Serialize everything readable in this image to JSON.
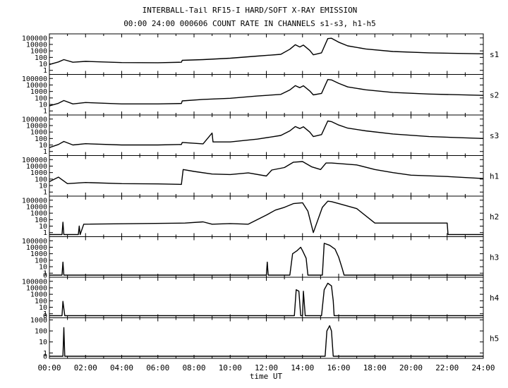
{
  "header": {
    "title": "INTERBALL-Tail RF15-I HARD/SOFT X-RAY EMISSION",
    "subtitle": "00:00 24:00 000606  COUNT RATE IN CHANNELS s1-s3, h1-h5"
  },
  "colors": {
    "ink": "#000000",
    "background": "#ffffff"
  },
  "chart_data": {
    "type": "line",
    "xlabel": "time UT",
    "x_tick_labels": [
      "00:00",
      "02:00",
      "04:00",
      "06:00",
      "08:00",
      "10:00",
      "12:00",
      "14:00",
      "16:00",
      "18:00",
      "20:00",
      "22:00",
      "24:00"
    ],
    "x_range_hours": [
      0,
      24
    ],
    "y_scale": "log",
    "grid": false,
    "panels": [
      {
        "name": "s1",
        "ylim": [
          0.5,
          200000
        ],
        "y_tick_labels": [
          "100000",
          "10000",
          "1000",
          "100",
          "10",
          "1"
        ],
        "series": [
          [
            0,
            8
          ],
          [
            0.5,
            20
          ],
          [
            0.8,
            45
          ],
          [
            1.3,
            18
          ],
          [
            2,
            24
          ],
          [
            4,
            16
          ],
          [
            6,
            15
          ],
          [
            7.3,
            18
          ],
          [
            7.35,
            35
          ],
          [
            8.5,
            45
          ],
          [
            10,
            75
          ],
          [
            11.5,
            160
          ],
          [
            12.8,
            300
          ],
          [
            13.3,
            1800
          ],
          [
            13.6,
            9000
          ],
          [
            13.85,
            4000
          ],
          [
            14.05,
            8000
          ],
          [
            14.4,
            1200
          ],
          [
            14.6,
            250
          ],
          [
            15.05,
            500
          ],
          [
            15.4,
            80000
          ],
          [
            15.6,
            90000
          ],
          [
            16,
            22000
          ],
          [
            16.5,
            6000
          ],
          [
            17.5,
            2000
          ],
          [
            19,
            800
          ],
          [
            21,
            500
          ],
          [
            24,
            350
          ]
        ]
      },
      {
        "name": "s2",
        "ylim": [
          0.5,
          200000
        ],
        "y_tick_labels": [
          "100000",
          "10000",
          "1000",
          "100",
          "10",
          "1"
        ],
        "series": [
          [
            0,
            6
          ],
          [
            0.5,
            15
          ],
          [
            0.8,
            40
          ],
          [
            1.3,
            12
          ],
          [
            2,
            20
          ],
          [
            4,
            12
          ],
          [
            6,
            12
          ],
          [
            7.3,
            14
          ],
          [
            7.35,
            35
          ],
          [
            8.5,
            60
          ],
          [
            10,
            90
          ],
          [
            11.5,
            200
          ],
          [
            12.8,
            350
          ],
          [
            13.3,
            1700
          ],
          [
            13.6,
            8000
          ],
          [
            13.85,
            3800
          ],
          [
            14.05,
            7500
          ],
          [
            14.4,
            1200
          ],
          [
            14.6,
            300
          ],
          [
            15.05,
            500
          ],
          [
            15.4,
            70000
          ],
          [
            15.6,
            60000
          ],
          [
            16,
            18000
          ],
          [
            16.5,
            5000
          ],
          [
            17.5,
            1800
          ],
          [
            19,
            700
          ],
          [
            21,
            400
          ],
          [
            24,
            250
          ]
        ]
      },
      {
        "name": "s3",
        "ylim": [
          0.5,
          200000
        ],
        "y_tick_labels": [
          "100000",
          "10000",
          "1000",
          "100",
          "10",
          "1"
        ],
        "series": [
          [
            0,
            4
          ],
          [
            0.5,
            12
          ],
          [
            0.8,
            35
          ],
          [
            1.3,
            10
          ],
          [
            2,
            16
          ],
          [
            4,
            10
          ],
          [
            6,
            10
          ],
          [
            7.3,
            12
          ],
          [
            7.35,
            25
          ],
          [
            8.5,
            15
          ],
          [
            9,
            700
          ],
          [
            9.05,
            30
          ],
          [
            10,
            30
          ],
          [
            11.5,
            80
          ],
          [
            12.8,
            300
          ],
          [
            13.3,
            1500
          ],
          [
            13.6,
            7000
          ],
          [
            13.85,
            3500
          ],
          [
            14.05,
            6500
          ],
          [
            14.4,
            1000
          ],
          [
            14.6,
            200
          ],
          [
            15.05,
            400
          ],
          [
            15.4,
            50000
          ],
          [
            15.6,
            40000
          ],
          [
            16,
            12000
          ],
          [
            16.5,
            4000
          ],
          [
            17.5,
            1500
          ],
          [
            19,
            500
          ],
          [
            21,
            200
          ],
          [
            24,
            100
          ]
        ]
      },
      {
        "name": "h1",
        "ylim": [
          0.5,
          200000
        ],
        "y_tick_labels": [
          "100000",
          "10000",
          "1000",
          "100",
          "10",
          "1"
        ],
        "series": [
          [
            0,
            40
          ],
          [
            0.5,
            200
          ],
          [
            1,
            20
          ],
          [
            2,
            30
          ],
          [
            4,
            20
          ],
          [
            6,
            18
          ],
          [
            7.3,
            15
          ],
          [
            7.4,
            3000
          ],
          [
            8,
            1500
          ],
          [
            9,
            600
          ],
          [
            10,
            500
          ],
          [
            11,
            900
          ],
          [
            12,
            300
          ],
          [
            12.3,
            2500
          ],
          [
            13,
            6000
          ],
          [
            13.5,
            40000
          ],
          [
            14,
            50000
          ],
          [
            14.5,
            8000
          ],
          [
            15,
            3000
          ],
          [
            15.3,
            30000
          ],
          [
            15.6,
            30000
          ],
          [
            16,
            25000
          ],
          [
            17,
            15000
          ],
          [
            18,
            3000
          ],
          [
            19,
            1000
          ],
          [
            20,
            400
          ],
          [
            22,
            250
          ],
          [
            24,
            120
          ]
        ]
      },
      {
        "name": "h2",
        "ylim": [
          0.5,
          200000
        ],
        "y_tick_labels": [
          "100000",
          "10000",
          "1000",
          "100",
          "10",
          "1"
        ],
        "series": [
          [
            0,
            0.5
          ],
          [
            0.7,
            0.5
          ],
          [
            0.75,
            40
          ],
          [
            0.8,
            0.5
          ],
          [
            1.6,
            0.5
          ],
          [
            1.65,
            10
          ],
          [
            1.7,
            0.5
          ],
          [
            1.9,
            20
          ],
          [
            7.5,
            30
          ],
          [
            8.5,
            45
          ],
          [
            9,
            20
          ],
          [
            10,
            25
          ],
          [
            11,
            20
          ],
          [
            12,
            500
          ],
          [
            12.5,
            3000
          ],
          [
            13,
            8000
          ],
          [
            13.5,
            30000
          ],
          [
            14,
            40000
          ],
          [
            14.3,
            2000
          ],
          [
            14.6,
            1
          ],
          [
            15.1,
            8000
          ],
          [
            15.4,
            70000
          ],
          [
            15.6,
            60000
          ],
          [
            16,
            30000
          ],
          [
            17,
            5000
          ],
          [
            18,
            30
          ],
          [
            22,
            30
          ],
          [
            22.05,
            0.5
          ],
          [
            24,
            0.5
          ]
        ]
      },
      {
        "name": "h3",
        "ylim": [
          0.5,
          200000
        ],
        "y_tick_labels": [
          "100000",
          "10000",
          "1000",
          "100",
          "10",
          "1",
          "0"
        ],
        "series": [
          [
            0,
            0.5
          ],
          [
            0.7,
            0.5
          ],
          [
            0.75,
            50
          ],
          [
            0.8,
            0.5
          ],
          [
            12,
            0.5
          ],
          [
            12.05,
            50
          ],
          [
            12.1,
            0.5
          ],
          [
            13.3,
            0.5
          ],
          [
            13.45,
            1000
          ],
          [
            13.7,
            3000
          ],
          [
            13.9,
            10000
          ],
          [
            14,
            3000
          ],
          [
            14.2,
            200
          ],
          [
            14.3,
            0.5
          ],
          [
            15.1,
            0.5
          ],
          [
            15.2,
            40000
          ],
          [
            15.5,
            20000
          ],
          [
            15.8,
            5000
          ],
          [
            16,
            300
          ],
          [
            16.2,
            5
          ],
          [
            16.3,
            0.5
          ],
          [
            24,
            0.5
          ]
        ]
      },
      {
        "name": "h4",
        "ylim": [
          0.5,
          200000
        ],
        "y_tick_labels": [
          "100000",
          "10000",
          "1000",
          "100",
          "10",
          "1",
          "0"
        ],
        "series": [
          [
            0,
            0.5
          ],
          [
            0.7,
            0.5
          ],
          [
            0.75,
            80
          ],
          [
            0.85,
            0.5
          ],
          [
            13.55,
            0.5
          ],
          [
            13.65,
            5000
          ],
          [
            13.8,
            3000
          ],
          [
            13.9,
            0.5
          ],
          [
            14,
            0.5
          ],
          [
            14.05,
            3000
          ],
          [
            14.15,
            0.5
          ],
          [
            15.05,
            0.5
          ],
          [
            15.2,
            5000
          ],
          [
            15.4,
            50000
          ],
          [
            15.6,
            20000
          ],
          [
            15.7,
            100
          ],
          [
            15.75,
            0.5
          ],
          [
            24,
            0.5
          ]
        ]
      },
      {
        "name": "h5",
        "ylim": [
          0.5,
          1000
        ],
        "y_tick_labels": [
          "1000",
          "100",
          "10",
          "1",
          "0"
        ],
        "series": [
          [
            0,
            0.5
          ],
          [
            0.75,
            0.5
          ],
          [
            0.8,
            200
          ],
          [
            0.85,
            0.5
          ],
          [
            15.25,
            0.5
          ],
          [
            15.35,
            100
          ],
          [
            15.5,
            300
          ],
          [
            15.6,
            100
          ],
          [
            15.7,
            0.5
          ],
          [
            24,
            0.5
          ]
        ]
      }
    ]
  }
}
